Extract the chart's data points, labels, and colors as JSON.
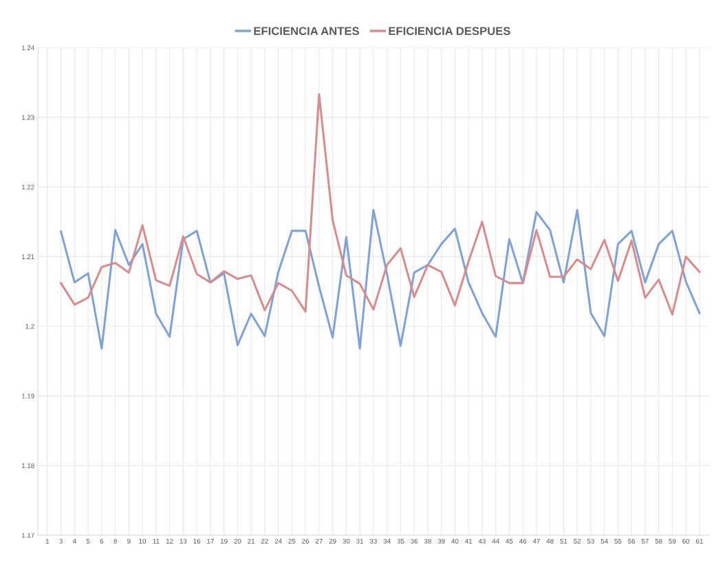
{
  "chart_data": {
    "type": "line",
    "categories": [
      "1",
      "3",
      "4",
      "5",
      "6",
      "8",
      "9",
      "10",
      "11",
      "12",
      "13",
      "16",
      "17",
      "19",
      "20",
      "21",
      "22",
      "24",
      "25",
      "26",
      "27",
      "29",
      "30",
      "31",
      "33",
      "34",
      "35",
      "36",
      "38",
      "39",
      "40",
      "41",
      "43",
      "44",
      "45",
      "46",
      "47",
      "48",
      "51",
      "52",
      "53",
      "54",
      "55",
      "56",
      "57",
      "58",
      "59",
      "60",
      "61"
    ],
    "series": [
      {
        "name": "EFICIENCIA ANTES",
        "color": "#7fa3d6",
        "values": [
          null,
          1.2136,
          1.2063,
          1.2076,
          1.1968,
          1.2138,
          1.2088,
          1.2118,
          1.2018,
          1.1985,
          1.2125,
          1.2137,
          1.2063,
          1.2076,
          1.1973,
          1.2018,
          1.1986,
          1.2078,
          1.2137,
          1.2137,
          1.2057,
          1.1984,
          1.2128,
          1.1968,
          1.2167,
          1.2075,
          1.1972,
          1.2077,
          1.2088,
          1.2118,
          1.214,
          1.2063,
          1.2019,
          1.1985,
          1.2125,
          1.2062,
          1.2164,
          1.2138,
          1.2063,
          1.2167,
          1.2019,
          1.1986,
          1.2118,
          1.2137,
          1.2063,
          1.2118,
          1.2137,
          1.2064,
          1.2019
        ]
      },
      {
        "name": "EFICIENCIA DESPUES",
        "color": "#d98c8c",
        "values": [
          null,
          1.2062,
          1.2031,
          1.2041,
          1.2085,
          1.2091,
          1.2077,
          1.2145,
          1.2066,
          1.2058,
          1.2129,
          1.2075,
          1.2063,
          1.2079,
          1.2068,
          1.2073,
          1.2023,
          1.2062,
          1.2051,
          1.2021,
          1.2333,
          1.2152,
          1.2073,
          1.2061,
          1.2024,
          1.2088,
          1.2112,
          1.2042,
          1.2088,
          1.2078,
          1.203,
          1.2093,
          1.215,
          1.2072,
          1.2062,
          1.2062,
          1.2138,
          1.2071,
          1.2071,
          1.2096,
          1.2082,
          1.2124,
          1.2065,
          1.2123,
          1.2041,
          1.2067,
          1.2017,
          1.21,
          1.2078
        ]
      }
    ],
    "ylim": [
      1.17,
      1.24
    ],
    "yticks": [
      1.17,
      1.18,
      1.19,
      1.2,
      1.21,
      1.22,
      1.23,
      1.24
    ],
    "grid": true,
    "legend": "top",
    "marker": "none",
    "line_style": "solid"
  }
}
